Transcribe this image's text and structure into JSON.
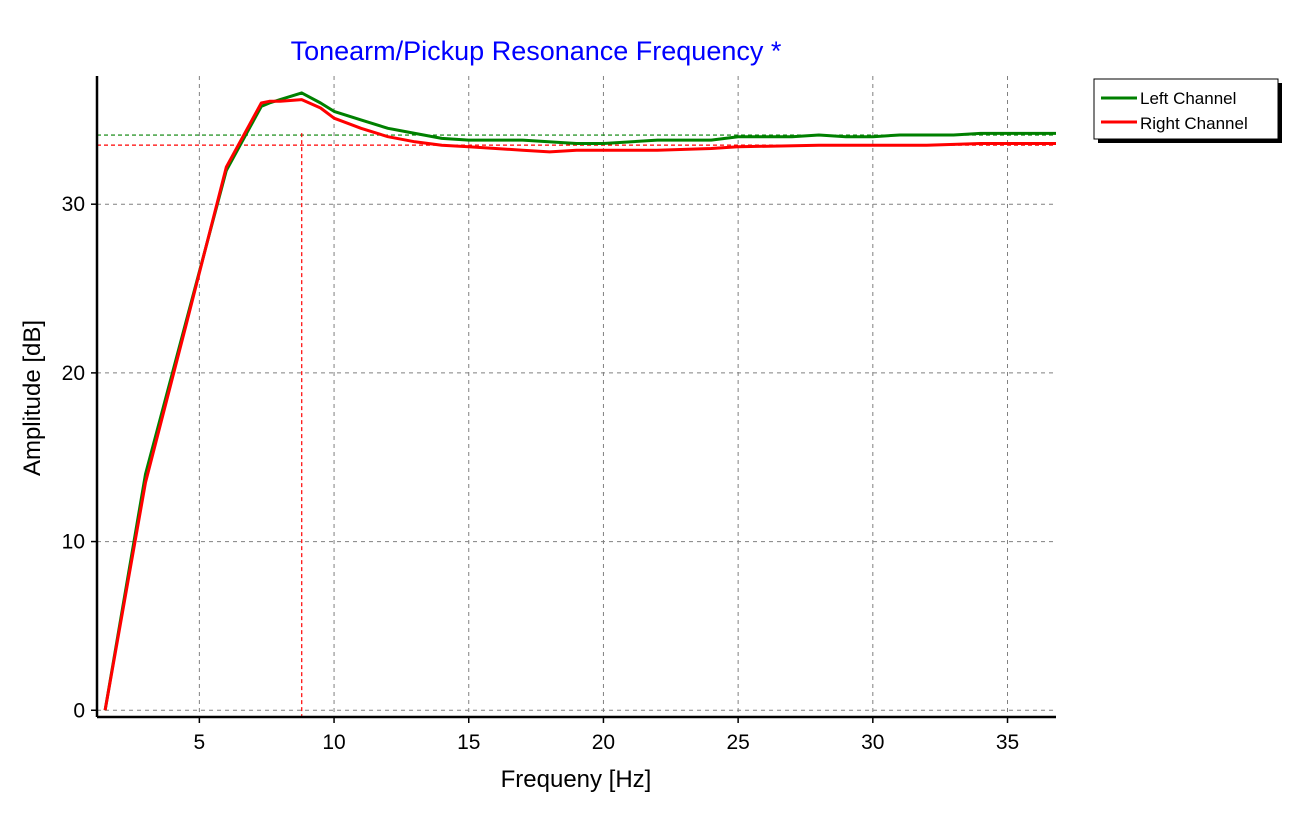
{
  "chart_data": {
    "type": "line",
    "title": "Tonearm/Pickup Resonance Frequency *",
    "xlabel": "Frequeny [Hz]",
    "ylabel": "Amplitude [dB]",
    "xlim": [
      1.2,
      36.8
    ],
    "ylim": [
      -0.4,
      37.6
    ],
    "xticks": [
      5,
      10,
      15,
      20,
      25,
      30,
      35
    ],
    "yticks": [
      0,
      10,
      20,
      30
    ],
    "grid": true,
    "legend": "outside-top-right",
    "series": [
      {
        "name": "Left Channel",
        "color": "#008000",
        "points": [
          [
            1.5,
            0
          ],
          [
            3,
            14
          ],
          [
            4.5,
            23
          ],
          [
            6,
            32
          ],
          [
            7.3,
            35.8
          ],
          [
            7.6,
            36
          ],
          [
            8,
            36.2
          ],
          [
            8.8,
            36.6
          ],
          [
            9.5,
            36
          ],
          [
            10,
            35.5
          ],
          [
            11,
            35
          ],
          [
            12,
            34.5
          ],
          [
            13,
            34.2
          ],
          [
            14,
            33.9
          ],
          [
            15,
            33.8
          ],
          [
            17,
            33.8
          ],
          [
            19,
            33.6
          ],
          [
            20,
            33.6
          ],
          [
            22,
            33.8
          ],
          [
            24,
            33.8
          ],
          [
            25,
            34
          ],
          [
            27,
            34
          ],
          [
            28,
            34.1
          ],
          [
            29,
            34
          ],
          [
            30,
            34
          ],
          [
            31,
            34.1
          ],
          [
            33,
            34.1
          ],
          [
            34,
            34.2
          ],
          [
            36.8,
            34.2
          ]
        ]
      },
      {
        "name": "Right Channel",
        "color": "#ff0000",
        "points": [
          [
            1.5,
            0
          ],
          [
            3,
            13.5
          ],
          [
            4.5,
            22.8
          ],
          [
            6,
            32.2
          ],
          [
            7.3,
            36
          ],
          [
            7.6,
            36.1
          ],
          [
            8,
            36.1
          ],
          [
            8.8,
            36.2
          ],
          [
            9.5,
            35.7
          ],
          [
            10,
            35.1
          ],
          [
            11,
            34.5
          ],
          [
            12,
            34
          ],
          [
            13,
            33.7
          ],
          [
            14,
            33.5
          ],
          [
            15,
            33.4
          ],
          [
            16,
            33.3
          ],
          [
            17,
            33.2
          ],
          [
            18,
            33.1
          ],
          [
            19,
            33.2
          ],
          [
            20,
            33.2
          ],
          [
            22,
            33.2
          ],
          [
            24,
            33.3
          ],
          [
            25,
            33.4
          ],
          [
            28,
            33.5
          ],
          [
            30,
            33.5
          ],
          [
            32,
            33.5
          ],
          [
            34,
            33.6
          ],
          [
            36.8,
            33.6
          ]
        ]
      }
    ],
    "markers": {
      "resonance_frequency": 8.8,
      "left_level": 34.1,
      "right_level": 33.5
    }
  }
}
